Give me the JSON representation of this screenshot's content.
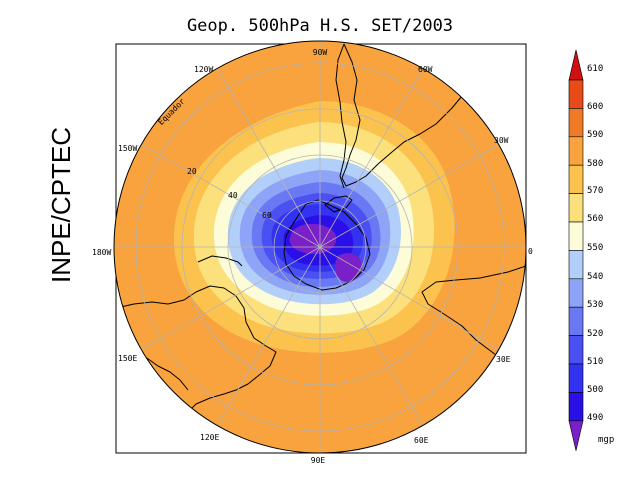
{
  "title": "Geop. 500hPa H.S. SET/2003",
  "credit": "INPE/CPTEC",
  "longitude_labels": {
    "lon_90w": "90W",
    "lon_60w": "60W",
    "lon_30w": "30W",
    "lon_0": "0",
    "lon_30e": "30E",
    "lon_60e": "60E",
    "lon_90e": "90E",
    "lon_120e": "120E",
    "lon_150e": "150E",
    "lon_180w": "180W",
    "lon_150w": "150W",
    "lon_120w": "120W"
  },
  "latitude_labels": {
    "eq": "Equador",
    "lat20": "20",
    "lat40": "40",
    "lat60": "60"
  },
  "colorbar": {
    "unit": "mgp",
    "levels": [
      "490",
      "500",
      "510",
      "520",
      "530",
      "540",
      "550",
      "560",
      "570",
      "580",
      "590",
      "600",
      "610"
    ],
    "colors": [
      "#7a20c8",
      "#2a10e6",
      "#3232f0",
      "#4a50f2",
      "#6a78f4",
      "#8ea4f6",
      "#b2cffa",
      "#fdfcd8",
      "#fbe07c",
      "#fcc24e",
      "#f8a33e",
      "#f07a26",
      "#e84a18",
      "#d01010"
    ]
  },
  "map": {
    "ocean_color": "#f8a33e",
    "border_color": "#000000",
    "grid_color": "#b4b4b4"
  }
}
